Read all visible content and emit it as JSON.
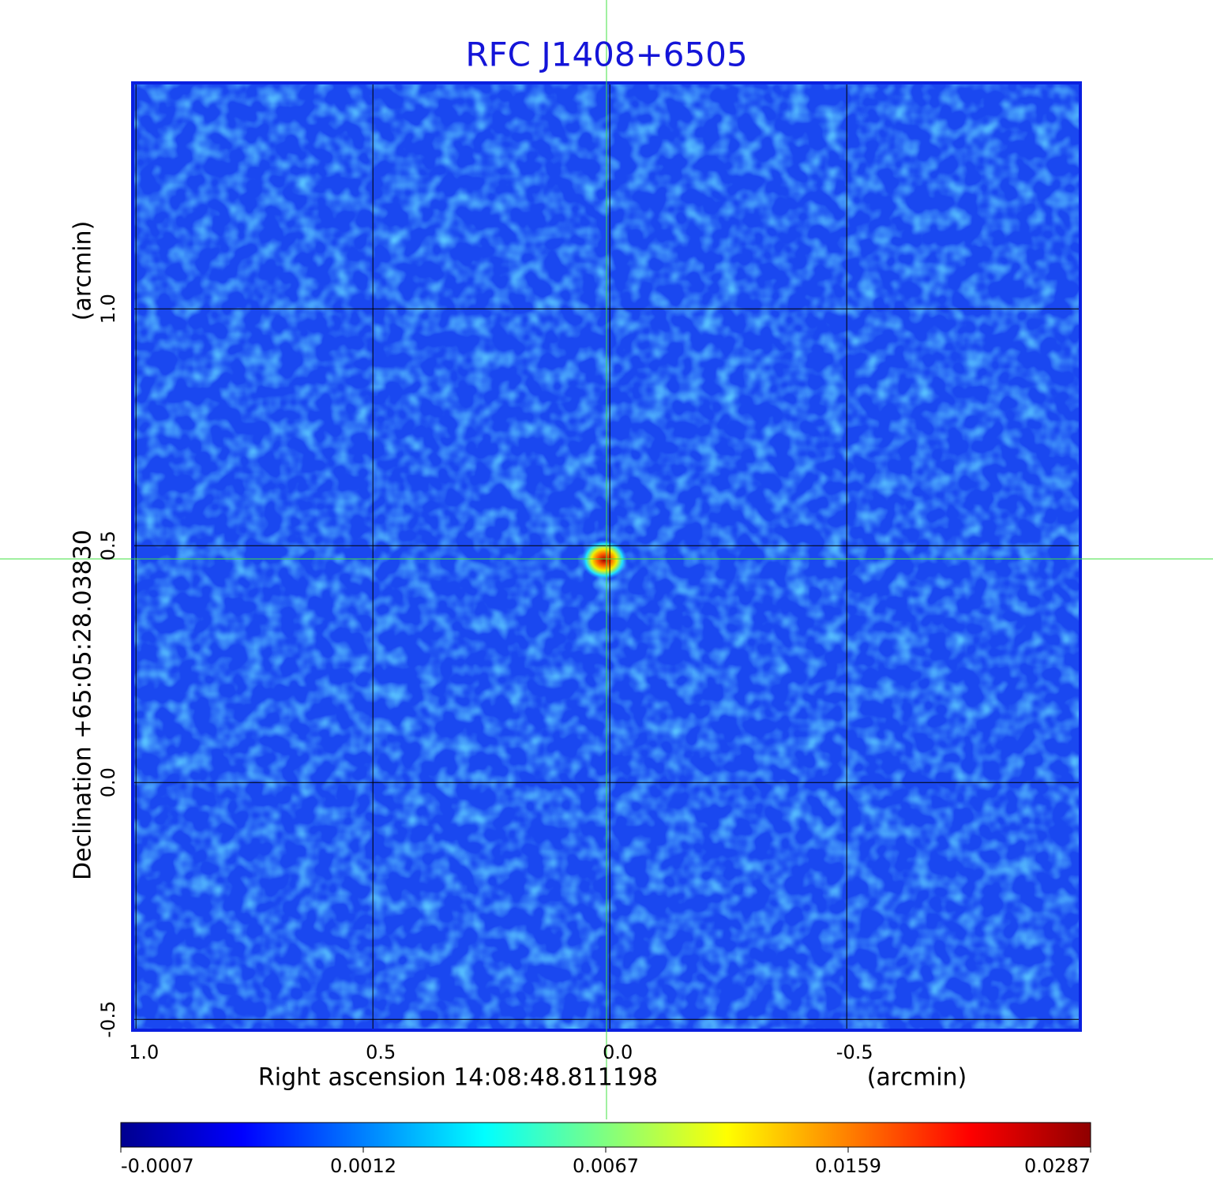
{
  "chart_data": {
    "type": "image",
    "title": "RFC J1408+6505",
    "xlabel": "Right ascension  14:08:48.811198",
    "xunit": "(arcmin)",
    "ylabel": "Declination  +65:05:28.03830",
    "yunit": "(arcmin)",
    "xlim": [
      1.007,
      -0.993
    ],
    "ylim": [
      -0.523,
      1.477
    ],
    "xticks": [
      {
        "value": 1,
        "label": "1.0"
      },
      {
        "value": 0.5,
        "label": "0.5"
      },
      {
        "value": 0,
        "label": "0.0"
      },
      {
        "value": -0.5,
        "label": "-0.5"
      }
    ],
    "yticks": [
      {
        "value": -0.5,
        "label": "-0.5"
      },
      {
        "value": 0,
        "label": "0.0"
      },
      {
        "value": 0.5,
        "label": "0.5"
      },
      {
        "value": 1,
        "label": "1.0"
      }
    ],
    "grid": true,
    "colorbar": {
      "ticks": [
        {
          "value": -0.0007,
          "label": "-0.0007"
        },
        0.0012,
        0.0067,
        0.0159,
        0.0287
      ],
      "colors": [
        "#00008f",
        "#0000ff",
        "#0080ff",
        "#00ffff",
        "#80ff80",
        "#ffff00",
        "#ff8000",
        "#ff0000",
        "#8f0000"
      ]
    }
  }
}
